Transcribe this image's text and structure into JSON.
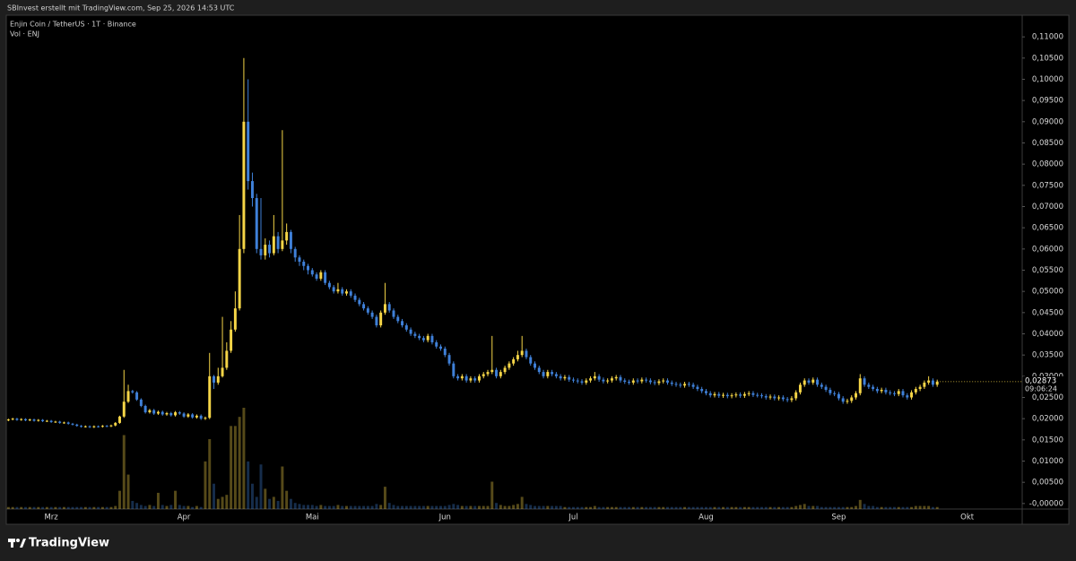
{
  "attribution": "SBInvest erstellt mit TradingView.com, Sep 25, 2026 14:53 UTC",
  "brand": "TradingView",
  "chart_data": {
    "type": "candlestick",
    "title": "Enjin Coin / TetherUS · 1T · Binance",
    "subtitle": "Vol · ENJ",
    "up_color": "#f5d547",
    "down_color": "#3f80d8",
    "grid": false,
    "last_value_label": "0,02873",
    "countdown": "09:06:24",
    "categories": [
      null,
      null,
      null,
      null,
      null,
      null,
      null,
      null,
      null,
      null,
      "Mrz",
      null,
      null,
      null,
      null,
      null,
      null,
      null,
      null,
      null,
      null,
      null,
      null,
      null,
      null,
      null,
      null,
      null,
      null,
      null,
      null,
      null,
      null,
      null,
      null,
      null,
      null,
      null,
      null,
      null,
      null,
      "Apr",
      null,
      null,
      null,
      null,
      null,
      null,
      null,
      null,
      null,
      null,
      null,
      null,
      null,
      null,
      null,
      null,
      null,
      null,
      null,
      null,
      null,
      null,
      null,
      null,
      null,
      null,
      null,
      null,
      null,
      "Mai",
      null,
      null,
      null,
      null,
      null,
      null,
      null,
      null,
      null,
      null,
      null,
      null,
      null,
      null,
      null,
      null,
      null,
      null,
      null,
      null,
      null,
      null,
      null,
      null,
      null,
      null,
      null,
      null,
      null,
      null,
      "Jun",
      null,
      null,
      null,
      null,
      null,
      null,
      null,
      null,
      null,
      null,
      null,
      null,
      null,
      null,
      null,
      null,
      null,
      null,
      null,
      null,
      null,
      null,
      null,
      null,
      null,
      null,
      null,
      null,
      null,
      "Jul",
      null,
      null,
      null,
      null,
      null,
      null,
      null,
      null,
      null,
      null,
      null,
      null,
      null,
      null,
      null,
      null,
      null,
      null,
      null,
      null,
      null,
      null,
      null,
      null,
      null,
      null,
      null,
      null,
      null,
      null,
      "Aug",
      null,
      null,
      null,
      null,
      null,
      null,
      null,
      null,
      null,
      null,
      null,
      null,
      null,
      null,
      null,
      null,
      null,
      null,
      null,
      null,
      null,
      null,
      null,
      null,
      null,
      null,
      null,
      null,
      null,
      null,
      "Sep",
      null,
      null,
      null,
      null,
      null,
      null,
      null,
      null,
      null,
      null,
      null,
      null,
      null,
      null,
      null,
      null,
      null,
      null,
      null,
      null,
      null,
      null,
      null,
      null,
      null,
      null,
      null,
      null,
      null,
      "Okt"
    ],
    "open": [
      0.0196,
      0.0198,
      0.02,
      0.0197,
      0.0199,
      0.0196,
      0.0198,
      0.0195,
      0.0197,
      0.0194,
      0.0195,
      0.0192,
      0.0193,
      0.019,
      0.0191,
      0.0188,
      0.0186,
      0.0183,
      0.0181,
      0.0182,
      0.018,
      0.0182,
      0.0181,
      0.0183,
      0.0182,
      0.0184,
      0.019,
      0.0205,
      0.024,
      0.0265,
      0.0262,
      0.0245,
      0.023,
      0.0215,
      0.022,
      0.0212,
      0.0216,
      0.021,
      0.0213,
      0.0208,
      0.0215,
      0.0212,
      0.0205,
      0.021,
      0.0203,
      0.0207,
      0.02,
      0.0202,
      0.03,
      0.0285,
      0.03,
      0.032,
      0.036,
      0.041,
      0.046,
      0.06,
      0.09,
      0.076,
      0.072,
      0.06,
      0.0585,
      0.061,
      0.059,
      0.063,
      0.06,
      0.062,
      0.064,
      0.06,
      0.058,
      0.057,
      0.056,
      0.055,
      0.054,
      0.053,
      0.0545,
      0.052,
      0.051,
      0.05,
      0.0505,
      0.0495,
      0.05,
      0.049,
      0.048,
      0.047,
      0.046,
      0.045,
      0.044,
      0.042,
      0.045,
      0.047,
      0.0455,
      0.044,
      0.043,
      0.042,
      0.041,
      0.04,
      0.0395,
      0.039,
      0.0385,
      0.0395,
      0.038,
      0.037,
      0.0365,
      0.035,
      0.033,
      0.03,
      0.0295,
      0.03,
      0.029,
      0.0295,
      0.029,
      0.03,
      0.0305,
      0.031,
      0.0315,
      0.03,
      0.031,
      0.032,
      0.033,
      0.034,
      0.035,
      0.036,
      0.0345,
      0.033,
      0.032,
      0.031,
      0.03,
      0.031,
      0.0305,
      0.03,
      0.0295,
      0.0298,
      0.0292,
      0.029,
      0.0288,
      0.0285,
      0.029,
      0.0295,
      0.03,
      0.0292,
      0.0288,
      0.029,
      0.0295,
      0.0298,
      0.029,
      0.0287,
      0.0285,
      0.029,
      0.0288,
      0.0292,
      0.029,
      0.0286,
      0.0284,
      0.0288,
      0.029,
      0.0285,
      0.0282,
      0.028,
      0.0278,
      0.0282,
      0.028,
      0.0275,
      0.027,
      0.0265,
      0.026,
      0.0255,
      0.0258,
      0.0254,
      0.0256,
      0.0253,
      0.0255,
      0.0257,
      0.0254,
      0.0258,
      0.026,
      0.0256,
      0.0255,
      0.0253,
      0.025,
      0.0252,
      0.0248,
      0.025,
      0.0246,
      0.0244,
      0.0248,
      0.0262,
      0.028,
      0.029,
      0.0285,
      0.0292,
      0.028,
      0.0275,
      0.0268,
      0.026,
      0.0258,
      0.0248,
      0.024,
      0.0242,
      0.025,
      0.026,
      0.0295,
      0.028,
      0.0275,
      0.027,
      0.0265,
      0.0268,
      0.0262,
      0.026,
      0.0258,
      0.0265,
      0.0255,
      0.025,
      0.0262,
      0.027,
      0.0275,
      0.0285,
      0.029,
      0.028,
      null,
      null,
      null,
      null,
      null,
      null,
      null
    ],
    "high": [
      0.02,
      0.0202,
      0.0202,
      0.0201,
      0.0201,
      0.02,
      0.02,
      0.0199,
      0.0199,
      0.0197,
      0.0197,
      0.0195,
      0.0195,
      0.0193,
      0.0193,
      0.019,
      0.0188,
      0.0185,
      0.0184,
      0.0184,
      0.0184,
      0.0184,
      0.0185,
      0.0185,
      0.0186,
      0.0192,
      0.0207,
      0.0315,
      0.028,
      0.0268,
      0.0265,
      0.0248,
      0.0233,
      0.0223,
      0.0223,
      0.0219,
      0.0219,
      0.0216,
      0.0216,
      0.0218,
      0.0218,
      0.0215,
      0.0213,
      0.0213,
      0.021,
      0.021,
      0.0205,
      0.0355,
      0.0303,
      0.032,
      0.044,
      0.038,
      0.043,
      0.05,
      0.068,
      0.105,
      0.1,
      0.078,
      0.073,
      0.072,
      0.0625,
      0.062,
      0.068,
      0.064,
      0.088,
      0.066,
      0.0645,
      0.0605,
      0.0585,
      0.0575,
      0.0565,
      0.0555,
      0.0545,
      0.055,
      0.055,
      0.0525,
      0.0515,
      0.052,
      0.051,
      0.0505,
      0.0505,
      0.0495,
      0.0485,
      0.0475,
      0.0465,
      0.0455,
      0.0445,
      0.0455,
      0.052,
      0.0475,
      0.046,
      0.0445,
      0.0435,
      0.0425,
      0.0415,
      0.0405,
      0.04,
      0.0395,
      0.04,
      0.04,
      0.0385,
      0.0375,
      0.037,
      0.0355,
      0.0335,
      0.0305,
      0.0305,
      0.0305,
      0.03,
      0.03,
      0.0305,
      0.031,
      0.0315,
      0.0395,
      0.032,
      0.0315,
      0.0325,
      0.0335,
      0.0345,
      0.036,
      0.0395,
      0.0365,
      0.035,
      0.0335,
      0.0325,
      0.0315,
      0.0315,
      0.0315,
      0.031,
      0.0305,
      0.0303,
      0.0303,
      0.0297,
      0.0295,
      0.0293,
      0.0295,
      0.03,
      0.031,
      0.0305,
      0.0297,
      0.0295,
      0.03,
      0.0303,
      0.0303,
      0.0295,
      0.0292,
      0.0295,
      0.0295,
      0.0297,
      0.0297,
      0.0295,
      0.0291,
      0.0293,
      0.0295,
      0.0295,
      0.029,
      0.0287,
      0.0285,
      0.0287,
      0.0287,
      0.0285,
      0.028,
      0.0275,
      0.027,
      0.0265,
      0.0263,
      0.0263,
      0.0261,
      0.0261,
      0.026,
      0.0262,
      0.0262,
      0.0263,
      0.0265,
      0.0265,
      0.0261,
      0.026,
      0.0258,
      0.0257,
      0.0257,
      0.0255,
      0.0255,
      0.0251,
      0.0253,
      0.0267,
      0.0285,
      0.0295,
      0.0295,
      0.0297,
      0.0297,
      0.0285,
      0.028,
      0.0273,
      0.0265,
      0.0263,
      0.0253,
      0.0247,
      0.0255,
      0.0265,
      0.0305,
      0.03,
      0.0285,
      0.028,
      0.0275,
      0.0273,
      0.0273,
      0.0267,
      0.0265,
      0.027,
      0.027,
      0.026,
      0.0267,
      0.0275,
      0.028,
      0.029,
      0.03,
      0.0295,
      0.0292,
      null,
      null,
      null,
      null,
      null,
      null,
      null
    ],
    "low": [
      0.0194,
      0.0196,
      0.0195,
      0.0195,
      0.0194,
      0.0194,
      0.0193,
      0.0193,
      0.0192,
      0.0192,
      0.019,
      0.019,
      0.0188,
      0.0188,
      0.0186,
      0.0184,
      0.0181,
      0.0179,
      0.0179,
      0.0178,
      0.0178,
      0.0179,
      0.0179,
      0.018,
      0.018,
      0.0182,
      0.0188,
      0.0202,
      0.0237,
      0.0259,
      0.0242,
      0.0227,
      0.0212,
      0.0212,
      0.0209,
      0.0209,
      0.0207,
      0.0207,
      0.0205,
      0.0205,
      0.0209,
      0.0202,
      0.0202,
      0.02,
      0.02,
      0.0197,
      0.0197,
      0.0199,
      0.027,
      0.028,
      0.0297,
      0.0315,
      0.0355,
      0.0405,
      0.0455,
      0.059,
      0.074,
      0.07,
      0.059,
      0.0575,
      0.0575,
      0.058,
      0.0585,
      0.059,
      0.0595,
      0.061,
      0.059,
      0.057,
      0.056,
      0.055,
      0.054,
      0.0535,
      0.0525,
      0.0525,
      0.0515,
      0.0505,
      0.0495,
      0.0495,
      0.049,
      0.049,
      0.0485,
      0.0475,
      0.0465,
      0.0455,
      0.0445,
      0.0435,
      0.0415,
      0.0415,
      0.0445,
      0.045,
      0.0435,
      0.0425,
      0.0415,
      0.0405,
      0.0395,
      0.039,
      0.0385,
      0.038,
      0.038,
      0.0375,
      0.0365,
      0.036,
      0.0345,
      0.0325,
      0.0295,
      0.029,
      0.029,
      0.0285,
      0.0285,
      0.0285,
      0.0285,
      0.0295,
      0.03,
      0.0305,
      0.0295,
      0.0295,
      0.0305,
      0.0315,
      0.0325,
      0.0335,
      0.0345,
      0.034,
      0.0325,
      0.0315,
      0.0305,
      0.0295,
      0.0295,
      0.03,
      0.0295,
      0.029,
      0.029,
      0.0287,
      0.0285,
      0.0283,
      0.028,
      0.028,
      0.0285,
      0.029,
      0.0287,
      0.0283,
      0.0283,
      0.0285,
      0.029,
      0.0285,
      0.0282,
      0.028,
      0.028,
      0.0283,
      0.0283,
      0.0285,
      0.0281,
      0.0279,
      0.0279,
      0.0283,
      0.028,
      0.0277,
      0.0275,
      0.0273,
      0.0273,
      0.0275,
      0.027,
      0.0265,
      0.026,
      0.0255,
      0.025,
      0.025,
      0.0249,
      0.0249,
      0.0248,
      0.0248,
      0.025,
      0.0249,
      0.0249,
      0.0253,
      0.0251,
      0.025,
      0.0248,
      0.0245,
      0.0245,
      0.0243,
      0.0243,
      0.0241,
      0.0239,
      0.0239,
      0.0243,
      0.0257,
      0.0275,
      0.028,
      0.028,
      0.0275,
      0.027,
      0.0263,
      0.0255,
      0.0253,
      0.0243,
      0.0235,
      0.0235,
      0.0237,
      0.0245,
      0.0255,
      0.0275,
      0.027,
      0.0265,
      0.026,
      0.026,
      0.0257,
      0.0255,
      0.0253,
      0.0253,
      0.025,
      0.0245,
      0.0245,
      0.0257,
      0.0265,
      0.027,
      0.028,
      0.0275,
      0.0275,
      null,
      null,
      null,
      null,
      null,
      null,
      null
    ],
    "close": [
      0.0198,
      0.02,
      0.0197,
      0.0199,
      0.0196,
      0.0198,
      0.0195,
      0.0197,
      0.0194,
      0.0195,
      0.0192,
      0.0193,
      0.019,
      0.0191,
      0.0188,
      0.0186,
      0.0183,
      0.0181,
      0.0182,
      0.018,
      0.0182,
      0.0181,
      0.0183,
      0.0182,
      0.0184,
      0.019,
      0.0205,
      0.024,
      0.0265,
      0.0262,
      0.0245,
      0.023,
      0.0215,
      0.022,
      0.0212,
      0.0216,
      0.021,
      0.0213,
      0.0208,
      0.0215,
      0.0212,
      0.0205,
      0.021,
      0.0203,
      0.0207,
      0.02,
      0.0202,
      0.03,
      0.0285,
      0.03,
      0.032,
      0.036,
      0.041,
      0.046,
      0.06,
      0.09,
      0.076,
      0.072,
      0.06,
      0.0585,
      0.061,
      0.059,
      0.063,
      0.06,
      0.062,
      0.064,
      0.06,
      0.058,
      0.057,
      0.056,
      0.055,
      0.054,
      0.053,
      0.0545,
      0.052,
      0.051,
      0.05,
      0.0505,
      0.0495,
      0.05,
      0.049,
      0.048,
      0.047,
      0.046,
      0.045,
      0.044,
      0.042,
      0.045,
      0.047,
      0.0455,
      0.044,
      0.043,
      0.042,
      0.041,
      0.04,
      0.0395,
      0.039,
      0.0385,
      0.0395,
      0.038,
      0.037,
      0.0365,
      0.035,
      0.033,
      0.03,
      0.0295,
      0.03,
      0.029,
      0.0295,
      0.029,
      0.03,
      0.0305,
      0.031,
      0.0315,
      0.03,
      0.031,
      0.032,
      0.033,
      0.034,
      0.035,
      0.036,
      0.0345,
      0.033,
      0.032,
      0.031,
      0.03,
      0.031,
      0.0305,
      0.03,
      0.0295,
      0.0298,
      0.0292,
      0.029,
      0.0288,
      0.0285,
      0.029,
      0.0295,
      0.03,
      0.0292,
      0.0288,
      0.029,
      0.0295,
      0.0298,
      0.029,
      0.0287,
      0.0285,
      0.029,
      0.0288,
      0.0292,
      0.029,
      0.0286,
      0.0284,
      0.0288,
      0.029,
      0.0285,
      0.0282,
      0.028,
      0.0278,
      0.0282,
      0.028,
      0.0275,
      0.027,
      0.0265,
      0.026,
      0.0255,
      0.0258,
      0.0254,
      0.0256,
      0.0253,
      0.0255,
      0.0257,
      0.0254,
      0.0258,
      0.026,
      0.0256,
      0.0255,
      0.0253,
      0.025,
      0.0252,
      0.0248,
      0.025,
      0.0246,
      0.0244,
      0.0248,
      0.0262,
      0.028,
      0.029,
      0.0285,
      0.0292,
      0.028,
      0.0275,
      0.0268,
      0.026,
      0.0258,
      0.0248,
      0.024,
      0.0242,
      0.025,
      0.026,
      0.0295,
      0.028,
      0.0275,
      0.027,
      0.0265,
      0.0268,
      0.0262,
      0.026,
      0.0258,
      0.0265,
      0.0255,
      0.025,
      0.0262,
      0.027,
      0.0275,
      0.0285,
      0.029,
      0.028,
      0.02873,
      null,
      null,
      null,
      null,
      null,
      null,
      null
    ],
    "volume": [
      2,
      2,
      2,
      2,
      2,
      2,
      2,
      2,
      2,
      2,
      2,
      2,
      2,
      2,
      2,
      2,
      2,
      2,
      2,
      2,
      2,
      2,
      2,
      2,
      2,
      3,
      18,
      73,
      34,
      8,
      6,
      4,
      3,
      4,
      3,
      16,
      4,
      3,
      4,
      18,
      4,
      3,
      3,
      2,
      3,
      2,
      47,
      69,
      25,
      10,
      12,
      14,
      82,
      82,
      91,
      100,
      47,
      25,
      12,
      44,
      20,
      10,
      12,
      8,
      42,
      18,
      10,
      6,
      5,
      4,
      4,
      4,
      3,
      4,
      3,
      3,
      3,
      4,
      3,
      3,
      3,
      3,
      3,
      3,
      3,
      3,
      5,
      4,
      22,
      6,
      4,
      3,
      3,
      3,
      3,
      3,
      3,
      3,
      3,
      3,
      3,
      3,
      3,
      4,
      5,
      4,
      3,
      3,
      3,
      3,
      3,
      3,
      3,
      27,
      6,
      4,
      3,
      3,
      4,
      5,
      12,
      5,
      4,
      3,
      3,
      3,
      3,
      3,
      3,
      3,
      2,
      2,
      2,
      2,
      2,
      2,
      2,
      3,
      2,
      2,
      2,
      2,
      2,
      2,
      2,
      2,
      2,
      2,
      2,
      2,
      2,
      2,
      2,
      2,
      2,
      2,
      2,
      2,
      2,
      2,
      2,
      2,
      2,
      2,
      2,
      2,
      2,
      2,
      2,
      2,
      2,
      2,
      2,
      2,
      2,
      2,
      2,
      2,
      2,
      2,
      2,
      2,
      2,
      2,
      3,
      4,
      5,
      3,
      3,
      3,
      2,
      2,
      2,
      2,
      2,
      2,
      2,
      2,
      3,
      9,
      5,
      3,
      3,
      2,
      2,
      2,
      2,
      2,
      2,
      2,
      2,
      2,
      3,
      3,
      3,
      3,
      2,
      2,
      null,
      null,
      null,
      null,
      null,
      null,
      null
    ],
    "ylim": [
      -0.0013,
      0.1151
    ],
    "yticks": [
      {
        "value": 0,
        "label": "-0,00000"
      },
      {
        "value": 0.005,
        "label": "0,00500"
      },
      {
        "value": 0.01,
        "label": "0,01000"
      },
      {
        "value": 0.015,
        "label": "0,01500"
      },
      {
        "value": 0.02,
        "label": "0,02000"
      },
      {
        "value": 0.025,
        "label": "0,02500"
      },
      {
        "value": 0.03,
        "label": "0,03000"
      },
      {
        "value": 0.035,
        "label": "0,03500"
      },
      {
        "value": 0.04,
        "label": "0,04000"
      },
      {
        "value": 0.045,
        "label": "0,04500"
      },
      {
        "value": 0.05,
        "label": "0,05000"
      },
      {
        "value": 0.055,
        "label": "0,05500"
      },
      {
        "value": 0.06,
        "label": "0,06000"
      },
      {
        "value": 0.065,
        "label": "0,06500"
      },
      {
        "value": 0.07,
        "label": "0,07000"
      },
      {
        "value": 0.075,
        "label": "0,07500"
      },
      {
        "value": 0.08,
        "label": "0,08000"
      },
      {
        "value": 0.085,
        "label": "0,08500"
      },
      {
        "value": 0.09,
        "label": "0,09000"
      },
      {
        "value": 0.095,
        "label": "0,09500"
      },
      {
        "value": 0.1,
        "label": "0,10000"
      },
      {
        "value": 0.105,
        "label": "0,10500"
      },
      {
        "value": 0.11,
        "label": "0,11000"
      }
    ]
  }
}
